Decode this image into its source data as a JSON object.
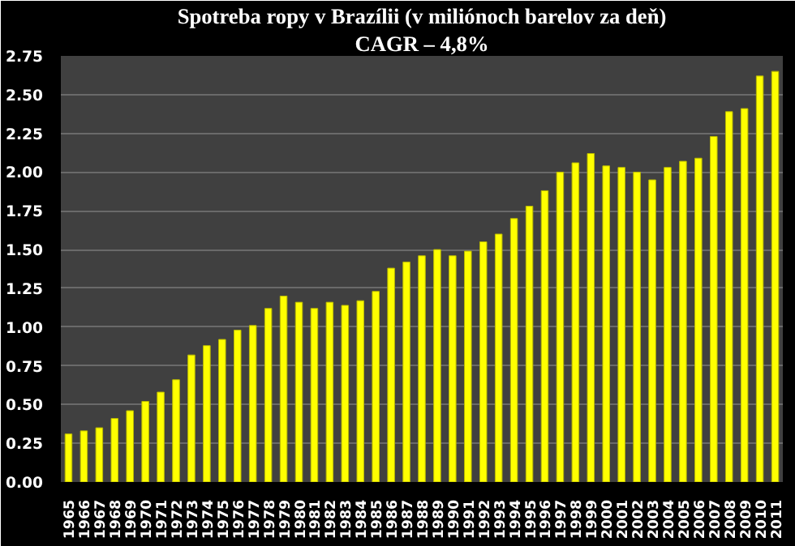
{
  "chart_data": {
    "type": "bar",
    "title": "Spotreba ropy v Brazílii (v miliónoch barelov za deň)",
    "subtitle": "CAGR – 4,8%",
    "categories": [
      "1965",
      "1966",
      "1967",
      "1968",
      "1969",
      "1970",
      "1971",
      "1972",
      "1973",
      "1974",
      "1975",
      "1976",
      "1977",
      "1978",
      "1979",
      "1980",
      "1981",
      "1982",
      "1983",
      "1984",
      "1985",
      "1986",
      "1987",
      "1988",
      "1989",
      "1990",
      "1991",
      "1992",
      "1993",
      "1994",
      "1995",
      "1996",
      "1997",
      "1998",
      "1999",
      "2000",
      "2001",
      "2002",
      "2003",
      "2004",
      "2005",
      "2006",
      "2007",
      "2008",
      "2009",
      "2010",
      "2011"
    ],
    "values": [
      0.31,
      0.33,
      0.35,
      0.41,
      0.46,
      0.52,
      0.58,
      0.66,
      0.82,
      0.88,
      0.92,
      0.98,
      1.01,
      1.12,
      1.2,
      1.16,
      1.12,
      1.16,
      1.14,
      1.17,
      1.23,
      1.38,
      1.42,
      1.46,
      1.5,
      1.46,
      1.49,
      1.55,
      1.6,
      1.7,
      1.78,
      1.88,
      2.0,
      2.06,
      2.12,
      2.04,
      2.03,
      2.0,
      1.95,
      2.03,
      2.07,
      2.09,
      2.23,
      2.39,
      2.41,
      2.62,
      2.65
    ],
    "color": "#ffff00",
    "ylim": [
      0,
      2.75
    ],
    "yticks": [
      {
        "value": 0,
        "label": "0.00"
      },
      {
        "value": 0.25,
        "label": "0.25"
      },
      {
        "value": 0.5,
        "label": "0.50"
      },
      {
        "value": 0.75,
        "label": "0.75"
      },
      {
        "value": 1,
        "label": "1.00"
      },
      {
        "value": 1.25,
        "label": "1.25"
      },
      {
        "value": 1.5,
        "label": "1.50"
      },
      {
        "value": 1.75,
        "label": "1.75"
      },
      {
        "value": 2,
        "label": "2.00"
      },
      {
        "value": 2.25,
        "label": "2.25"
      },
      {
        "value": 2.5,
        "label": "2.50"
      },
      {
        "value": 2.75,
        "label": "2.75"
      }
    ],
    "grid": "y"
  }
}
